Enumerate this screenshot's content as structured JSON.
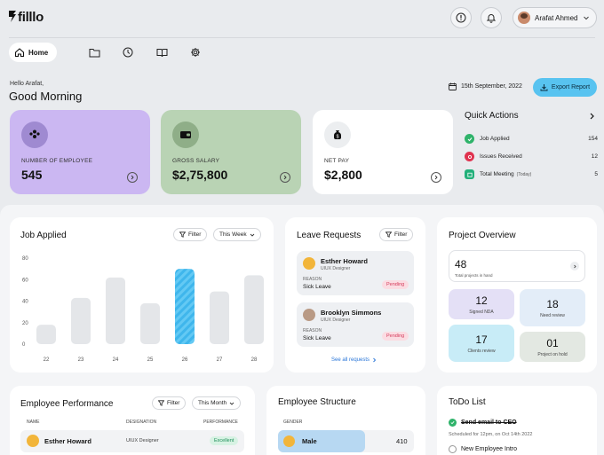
{
  "app": {
    "brand": "filllo"
  },
  "header": {
    "user_name": "Arafat Ahmed"
  },
  "nav": {
    "home_label": "Home"
  },
  "greeting": {
    "hello": "Hello Arafat,",
    "message": "Good Morning",
    "date": "15th September, 2022",
    "export_label": "Export Report"
  },
  "stats": [
    {
      "label": "NUMBER OF EMPLOYEE",
      "value": "545",
      "color": "#cbb7f2"
    },
    {
      "label": "GROSS SALARY",
      "value": "$2,75,800",
      "color": "#b9d3b4"
    },
    {
      "label": "NET PAY",
      "value": "$2,800",
      "color": "#ffffff"
    }
  ],
  "quick_actions": {
    "title": "Quick Actions",
    "items": [
      {
        "label": "Job Applied",
        "note": "",
        "count": "154",
        "color": "#2fb36a"
      },
      {
        "label": "Issues Received",
        "note": "",
        "count": "12",
        "color": "#e0334f"
      },
      {
        "label": "Total Meeting",
        "note": "(Today)",
        "count": "5",
        "color": "#22b07a"
      }
    ]
  },
  "job_applied": {
    "title": "Job Applied",
    "filter_label": "Filter",
    "period_label": "This Week",
    "chart_data": {
      "type": "bar",
      "categories": [
        "22",
        "23",
        "24",
        "25",
        "26",
        "27",
        "28"
      ],
      "values": [
        18,
        43,
        62,
        38,
        70,
        49,
        64
      ],
      "highlight": "26",
      "yticks": [
        "80",
        "60",
        "40",
        "20",
        "0"
      ],
      "ylim": [
        0,
        80
      ]
    }
  },
  "leave_requests": {
    "title": "Leave Requests",
    "filter_label": "Filter",
    "items": [
      {
        "name": "Esther Howard",
        "role": "UIUX Designer",
        "reason_label": "REASON",
        "reason": "Sick Leave",
        "status": "Pending"
      },
      {
        "name": "Brooklyn Simmons",
        "role": "UIUX Designer",
        "reason_label": "REASON",
        "reason": "Sick Leave",
        "status": "Pending"
      }
    ],
    "see_all": "See all requests"
  },
  "project_overview": {
    "title": "Project Overview",
    "total": {
      "value": "48",
      "label": "Total projects in hand"
    },
    "tiles": [
      {
        "value": "12",
        "label": "Signed NDA",
        "color": "#e4e0f6"
      },
      {
        "value": "18",
        "label": "Need review",
        "color": "#e3edf8"
      },
      {
        "value": "17",
        "label": "Clients review",
        "color": "#c8ecf7"
      },
      {
        "value": "01",
        "label": "Project on hold",
        "color": "#e3e8e2"
      }
    ]
  },
  "employee_performance": {
    "title": "Employee Performance",
    "filter_label": "Filter",
    "period_label": "This Month",
    "columns": [
      "NAME",
      "DESIGNATION",
      "PERFORMANCE"
    ],
    "rows": [
      {
        "name": "Esther Howard",
        "designation": "UIUX Designer",
        "performance": "Excellent"
      }
    ]
  },
  "employee_structure": {
    "title": "Employee Structure",
    "column": "GENDER",
    "rows": [
      {
        "label": "Male",
        "value": "410"
      }
    ]
  },
  "todo": {
    "title": "ToDo List",
    "items": [
      {
        "title": "Send email to CEO",
        "sub": "Scheduled for 12pm, on Oct 14th 2022",
        "done": true
      },
      {
        "title": "New Employee Intro",
        "sub": "",
        "done": false
      }
    ]
  }
}
